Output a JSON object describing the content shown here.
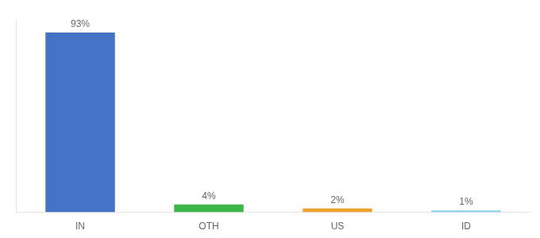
{
  "chart_data": {
    "type": "bar",
    "categories": [
      "IN",
      "OTH",
      "US",
      "ID"
    ],
    "values": [
      93,
      4,
      2,
      1
    ],
    "value_labels": [
      "93%",
      "4%",
      "2%",
      "1%"
    ],
    "colors": [
      "#4472c4",
      "#3cb54a",
      "#f0a030",
      "#87ceeb"
    ],
    "ylim": [
      0,
      100
    ],
    "grid": false,
    "data_labels": true,
    "tick_labels": "x"
  }
}
